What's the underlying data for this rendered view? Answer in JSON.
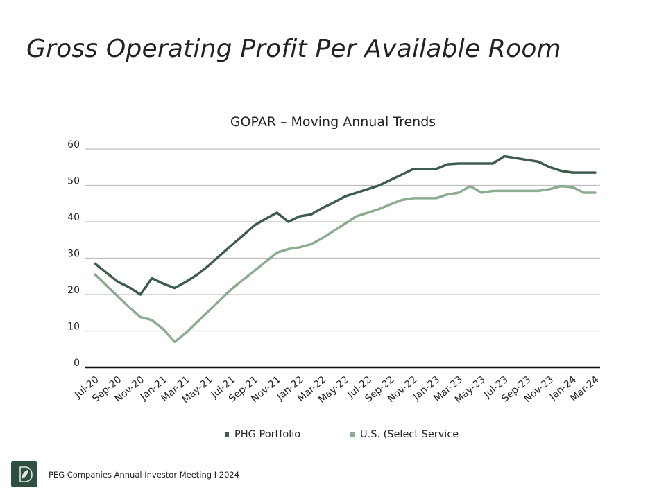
{
  "slide": {
    "title": "Gross Operating Profit Per Available Room"
  },
  "footer": {
    "text": "PEG Companies Annual Investor Meeting I 2024",
    "logo_icon": "leaf-logo-icon",
    "logo_color": "#2f4f3f"
  },
  "chart_data": {
    "type": "line",
    "title": "GOPAR – Moving Annual Trends",
    "xlabel": "",
    "ylabel": "",
    "ylim": [
      0,
      60
    ],
    "yticks": [
      0,
      10,
      20,
      30,
      40,
      50,
      60
    ],
    "grid": true,
    "legend_position": "bottom",
    "x": [
      "Jul-20",
      "Aug-20",
      "Sep-20",
      "Oct-20",
      "Nov-20",
      "Dec-20",
      "Jan-21",
      "Feb-21",
      "Mar-21",
      "Apr-21",
      "May-21",
      "Jun-21",
      "Jul-21",
      "Aug-21",
      "Sep-21",
      "Oct-21",
      "Nov-21",
      "Dec-21",
      "Jan-22",
      "Feb-22",
      "Mar-22",
      "Apr-22",
      "May-22",
      "Jun-22",
      "Jul-22",
      "Aug-22",
      "Sep-22",
      "Oct-22",
      "Nov-22",
      "Dec-22",
      "Jan-23",
      "Feb-23",
      "Mar-23",
      "Apr-23",
      "May-23",
      "Jun-23",
      "Jul-23",
      "Aug-23",
      "Sep-23",
      "Oct-23",
      "Nov-23",
      "Dec-23",
      "Jan-24",
      "Feb-24",
      "Mar-24"
    ],
    "xtick_labels": [
      "Jul-20",
      "Sep-20",
      "Nov-20",
      "Jan-21",
      "Mar-21",
      "May-21",
      "Jul-21",
      "Sep-21",
      "Nov-21",
      "Jan-22",
      "Mar-22",
      "May-22",
      "Jul-22",
      "Sep-22",
      "Nov-22",
      "Jan-23",
      "Mar-23",
      "May-23",
      "Jul-23",
      "Sep-23",
      "Nov-23",
      "Jan-24",
      "Mar-24"
    ],
    "series": [
      {
        "name": "PHG Portfolio",
        "color": "#3d5c4b",
        "values": [
          28.5,
          26,
          23.5,
          22,
          20,
          24.5,
          23,
          21.8,
          23.5,
          25.5,
          28,
          30.8,
          33.5,
          36.2,
          39,
          40.8,
          42.5,
          40,
          41.5,
          42,
          43.8,
          45.3,
          47,
          48,
          49,
          50,
          51.5,
          53,
          54.5,
          54.5,
          54.5,
          55.8,
          56,
          56,
          56,
          56,
          58,
          57.5,
          57,
          56.5,
          55,
          54,
          53.5,
          53.5,
          53.5
        ]
      },
      {
        "name": "U.S. (Select Service",
        "color": "#8cac8f",
        "values": [
          25.5,
          22.5,
          19.5,
          16.5,
          13.8,
          13,
          10.5,
          7,
          9.5,
          12.5,
          15.5,
          18.5,
          21.5,
          24,
          26.5,
          29,
          31.5,
          32.5,
          33,
          33.8,
          35.5,
          37.5,
          39.5,
          41.5,
          42.5,
          43.5,
          44.8,
          46,
          46.5,
          46.5,
          46.5,
          47.5,
          48,
          49.8,
          48,
          48.5,
          48.5,
          48.5,
          48.5,
          48.5,
          49,
          49.8,
          49.5,
          48,
          48
        ]
      }
    ]
  }
}
